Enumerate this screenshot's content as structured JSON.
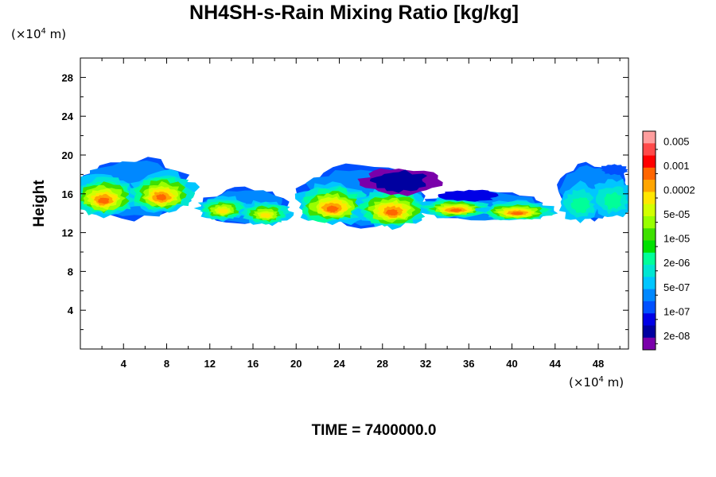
{
  "chart_data": {
    "type": "heatmap",
    "title": "NH4SH-s-Rain Mixing Ratio [kg/kg]",
    "xlabel": "",
    "ylabel": "Height",
    "x_unit": "(×10⁴ m)",
    "y_unit": "(×10⁴ m)",
    "x_unit_parts": {
      "pre": "(×10",
      "exp": "4",
      "post": " m)"
    },
    "y_unit_parts": {
      "pre": "(×10",
      "exp": "4",
      "post": " m)"
    },
    "xlim": [
      0,
      50.8
    ],
    "ylim": [
      0,
      30
    ],
    "xticks": [
      4,
      8,
      12,
      16,
      20,
      24,
      28,
      32,
      36,
      40,
      44,
      48
    ],
    "yticks": [
      4,
      8,
      12,
      16,
      20,
      24,
      28
    ],
    "grid": false,
    "legend": "colorbar-right",
    "colorbar": {
      "labels": [
        "0.005",
        "0.001",
        "0.0002",
        "5e-05",
        "1e-05",
        "2e-06",
        "5e-07",
        "1e-07",
        "2e-08"
      ],
      "colors": [
        "#ff9e9e",
        "#ff4a4a",
        "#ff0000",
        "#ff6600",
        "#ffa500",
        "#ffe600",
        "#d2ff00",
        "#98ff00",
        "#3ee000",
        "#00e000",
        "#00ff99",
        "#00e6d2",
        "#00c6ff",
        "#0088ff",
        "#0050ff",
        "#0000e6",
        "#0000a0",
        "#7a00aa"
      ]
    },
    "cloud_regions": [
      {
        "x": [
          0.0,
          10.0
        ],
        "y": [
          13.5,
          19.5
        ],
        "peak": "1e-03"
      },
      {
        "x": [
          11.5,
          19.0
        ],
        "y": [
          13.0,
          16.5
        ],
        "peak": "2e-04"
      },
      {
        "x": [
          20.5,
          31.5
        ],
        "y": [
          12.8,
          18.8
        ],
        "peak": "1e-03"
      },
      {
        "x": [
          32.0,
          43.0
        ],
        "y": [
          13.3,
          16.2
        ],
        "peak": "1e-03"
      },
      {
        "x": [
          44.5,
          50.8
        ],
        "y": [
          13.5,
          19.0
        ],
        "peak": "2e-06"
      }
    ]
  },
  "footer": {
    "time_label": "TIME = 7400000.0"
  }
}
